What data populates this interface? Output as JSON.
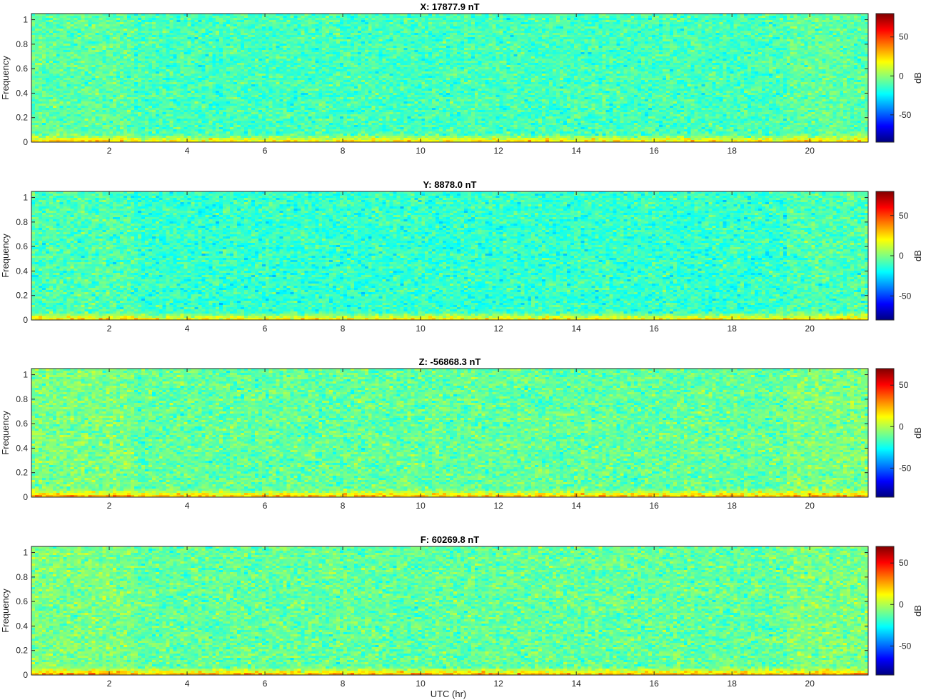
{
  "figure": {
    "xlabel": "UTC (hr)"
  },
  "chart_data": [
    {
      "type": "heatmap",
      "title": "X: 17877.9 nT",
      "xlabel": "",
      "ylabel": "Frequency",
      "xlim": [
        0,
        21.5
      ],
      "ylim": [
        0,
        1.05
      ],
      "xticks": [
        2,
        4,
        6,
        8,
        10,
        12,
        14,
        16,
        18,
        20
      ],
      "yticks": [
        0,
        0.2,
        0.4,
        0.6,
        0.8,
        1
      ],
      "colorbar": {
        "label": "dB",
        "range": [
          -85,
          80
        ],
        "ticks": [
          -50,
          0,
          50
        ],
        "colormap": "jet"
      },
      "grid": false
    },
    {
      "type": "heatmap",
      "title": "Y: 8878.0 nT",
      "xlabel": "",
      "ylabel": "Frequency",
      "xlim": [
        0,
        21.5
      ],
      "ylim": [
        0,
        1.05
      ],
      "xticks": [
        2,
        4,
        6,
        8,
        10,
        12,
        14,
        16,
        18,
        20
      ],
      "yticks": [
        0,
        0.2,
        0.4,
        0.6,
        0.8,
        1
      ],
      "colorbar": {
        "label": "dB",
        "range": [
          -80,
          80
        ],
        "ticks": [
          -50,
          0,
          50
        ],
        "colormap": "jet"
      },
      "grid": false
    },
    {
      "type": "heatmap",
      "title": "Z: -56868.3 nT",
      "xlabel": "",
      "ylabel": "Frequency",
      "xlim": [
        0,
        21.5
      ],
      "ylim": [
        0,
        1.05
      ],
      "xticks": [
        2,
        4,
        6,
        8,
        10,
        12,
        14,
        16,
        18,
        20
      ],
      "yticks": [
        0,
        0.2,
        0.4,
        0.6,
        0.8,
        1
      ],
      "colorbar": {
        "label": "dB",
        "range": [
          -85,
          70
        ],
        "ticks": [
          -50,
          0,
          50
        ],
        "colormap": "jet"
      },
      "grid": false
    },
    {
      "type": "heatmap",
      "title": "F: 60269.8 nT",
      "xlabel": "UTC (hr)",
      "ylabel": "Frequency",
      "xlim": [
        0,
        21.5
      ],
      "ylim": [
        0,
        1.05
      ],
      "xticks": [
        2,
        4,
        6,
        8,
        10,
        12,
        14,
        16,
        18,
        20
      ],
      "yticks": [
        0,
        0.2,
        0.4,
        0.6,
        0.8,
        1
      ],
      "colorbar": {
        "label": "dB",
        "range": [
          -85,
          70
        ],
        "ticks": [
          -50,
          0,
          50
        ],
        "colormap": "jet"
      },
      "grid": false
    }
  ]
}
